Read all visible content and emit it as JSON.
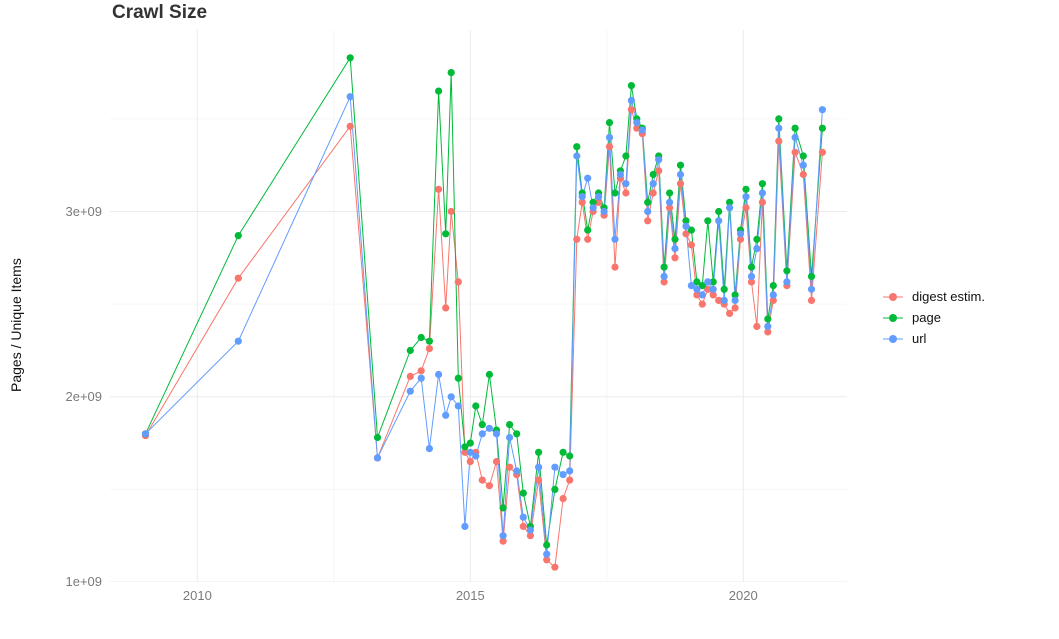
{
  "chart_data": {
    "type": "line",
    "title": "Crawl Size",
    "xlabel": "",
    "ylabel": "Pages / Unique Items",
    "legend_position": "right",
    "grid": true,
    "grid_major_color": "#ebebeb",
    "grid_minor_color": "#f6f6f6",
    "y_unit": "1e9",
    "axes": {
      "x_domain": [
        2008.4,
        2021.9
      ],
      "y_domain": [
        1.0,
        3.98
      ],
      "x_tick_values": [
        2010,
        2015,
        2020
      ],
      "x_tick_labels": [
        "2010",
        "2015",
        "2020"
      ],
      "x_minor": [
        2012.5,
        2017.5
      ],
      "y_tick_values": [
        1,
        2,
        3
      ],
      "y_tick_labels": [
        "1e+09",
        "2e+09",
        "3e+09"
      ],
      "y_minor": [
        1.5,
        2.5,
        3.5
      ]
    },
    "x": [
      2009.05,
      2010.75,
      2012.8,
      2013.3,
      2013.9,
      2014.1,
      2014.25,
      2014.42,
      2014.55,
      2014.65,
      2014.78,
      2014.9,
      2015.0,
      2015.1,
      2015.22,
      2015.35,
      2015.48,
      2015.6,
      2015.72,
      2015.85,
      2015.97,
      2016.1,
      2016.25,
      2016.4,
      2016.55,
      2016.7,
      2016.82,
      2016.95,
      2017.05,
      2017.15,
      2017.25,
      2017.35,
      2017.45,
      2017.55,
      2017.65,
      2017.75,
      2017.85,
      2017.95,
      2018.05,
      2018.15,
      2018.25,
      2018.35,
      2018.45,
      2018.55,
      2018.65,
      2018.75,
      2018.85,
      2018.95,
      2019.05,
      2019.15,
      2019.25,
      2019.35,
      2019.45,
      2019.55,
      2019.65,
      2019.75,
      2019.85,
      2019.95,
      2020.05,
      2020.15,
      2020.25,
      2020.35,
      2020.45,
      2020.55,
      2020.65,
      2020.8,
      2020.95,
      2021.1,
      2021.25,
      2021.45
    ],
    "series": [
      {
        "name": "digest estim.",
        "color": "#F8766D",
        "values": [
          1.79,
          2.64,
          3.46,
          1.67,
          2.11,
          2.14,
          2.26,
          3.12,
          2.48,
          3.0,
          2.62,
          1.7,
          1.65,
          1.7,
          1.55,
          1.52,
          1.65,
          1.22,
          1.62,
          1.58,
          1.3,
          1.25,
          1.55,
          1.12,
          1.08,
          1.45,
          1.55,
          2.85,
          3.05,
          2.85,
          3.0,
          3.05,
          2.98,
          3.35,
          2.7,
          3.18,
          3.1,
          3.55,
          3.45,
          3.42,
          2.95,
          3.1,
          3.22,
          2.62,
          3.02,
          2.75,
          3.15,
          2.88,
          2.82,
          2.55,
          2.5,
          2.58,
          2.55,
          2.52,
          2.5,
          2.45,
          2.48,
          2.85,
          3.02,
          2.62,
          2.38,
          3.05,
          2.35,
          2.52,
          3.38,
          2.6,
          3.32,
          3.2,
          2.52,
          3.32
        ]
      },
      {
        "name": "page",
        "color": "#00BA38",
        "values": [
          1.8,
          2.87,
          3.83,
          1.78,
          2.25,
          2.32,
          2.3,
          3.65,
          2.88,
          3.75,
          2.1,
          1.73,
          1.75,
          1.95,
          1.85,
          2.12,
          1.82,
          1.4,
          1.85,
          1.8,
          1.48,
          1.3,
          1.7,
          1.2,
          1.5,
          1.7,
          1.68,
          3.35,
          3.1,
          2.9,
          3.05,
          3.1,
          3.02,
          3.48,
          3.1,
          3.22,
          3.3,
          3.68,
          3.5,
          3.45,
          3.05,
          3.2,
          3.3,
          2.7,
          3.1,
          2.85,
          3.25,
          2.95,
          2.9,
          2.62,
          2.6,
          2.95,
          2.62,
          3.0,
          2.58,
          3.05,
          2.55,
          2.9,
          3.12,
          2.7,
          2.85,
          3.15,
          2.42,
          2.6,
          3.5,
          2.68,
          3.45,
          3.3,
          2.65,
          3.45
        ]
      },
      {
        "name": "url",
        "color": "#619CFF",
        "values": [
          1.8,
          2.3,
          3.62,
          1.67,
          2.03,
          2.1,
          1.72,
          2.12,
          1.9,
          2.0,
          1.95,
          1.3,
          1.7,
          1.68,
          1.8,
          1.83,
          1.8,
          1.25,
          1.78,
          1.6,
          1.35,
          1.28,
          1.62,
          1.15,
          1.62,
          1.58,
          1.6,
          3.3,
          3.08,
          3.18,
          3.02,
          3.08,
          3.0,
          3.4,
          2.85,
          3.2,
          3.15,
          3.6,
          3.48,
          3.44,
          3.0,
          3.15,
          3.28,
          2.65,
          3.05,
          2.8,
          3.2,
          2.92,
          2.6,
          2.58,
          2.55,
          2.62,
          2.58,
          2.95,
          2.52,
          3.02,
          2.52,
          2.88,
          3.08,
          2.65,
          2.8,
          3.1,
          2.38,
          2.55,
          3.45,
          2.62,
          3.4,
          3.25,
          2.58,
          3.55
        ]
      }
    ]
  }
}
